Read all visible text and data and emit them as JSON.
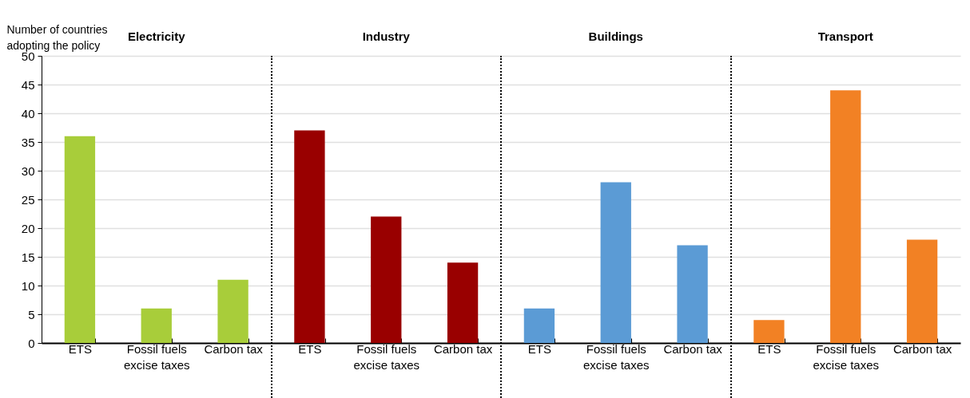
{
  "chart_data": {
    "type": "bar",
    "ylabel": "Number of countries adopting the policy",
    "categories": [
      "ETS",
      "Fossil fuels excise taxes",
      "Carbon tax",
      "ETS",
      "Fossil fuels excise taxes",
      "Carbon tax",
      "ETS",
      "Fossil fuels excise taxes",
      "Carbon tax",
      "ETS",
      "Fossil fuels excise taxes",
      "Carbon tax"
    ],
    "series": [
      {
        "color": "#a8cd3a",
        "values": [
          36,
          6,
          11,
          null,
          null,
          null,
          null,
          null,
          null,
          null,
          null,
          null
        ]
      },
      {
        "color": "#990000",
        "values": [
          null,
          null,
          null,
          37,
          22,
          14,
          null,
          null,
          null,
          null,
          null,
          null
        ]
      },
      {
        "color": "#5b9bd5",
        "values": [
          null,
          null,
          null,
          null,
          null,
          null,
          6,
          28,
          17,
          null,
          null,
          null
        ]
      },
      {
        "color": "#f28124",
        "values": [
          null,
          null,
          null,
          null,
          null,
          null,
          null,
          null,
          null,
          4,
          44,
          18
        ]
      }
    ],
    "annotations": [
      "Electricity",
      "Industry",
      "Buildings",
      "Transport"
    ],
    "ylim": [
      0,
      50
    ],
    "yticks": [
      0,
      5,
      10,
      15,
      20,
      25,
      30,
      35,
      40,
      45,
      50
    ],
    "grid": "y"
  }
}
